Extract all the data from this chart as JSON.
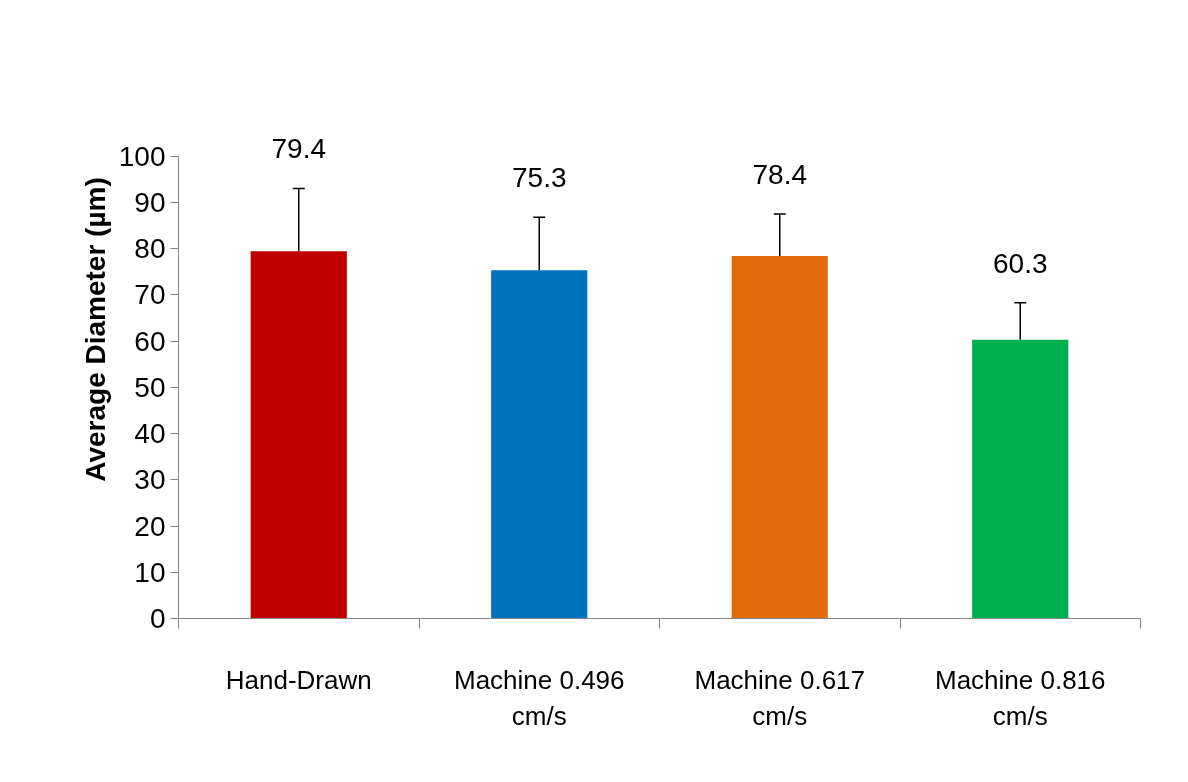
{
  "chart_data": {
    "type": "bar",
    "ylabel": "Average Diameter (µm)",
    "categories": [
      "Hand-Drawn",
      "Machine 0.496 cm/s",
      "Machine 0.617 cm/s",
      "Machine 0.816 cm/s"
    ],
    "values": [
      79.4,
      75.3,
      78.4,
      60.3
    ],
    "colors": [
      "#c00000",
      "#0070c0",
      "#e36c0a",
      "#00b050"
    ],
    "errors": [
      [
        79.4,
        93.0
      ],
      [
        75.3,
        86.8
      ],
      [
        78.4,
        87.5
      ],
      [
        60.3,
        68.3
      ]
    ],
    "ylim": [
      0,
      100
    ],
    "yticks": [
      0,
      10,
      20,
      30,
      40,
      50,
      60,
      70,
      80,
      90,
      100
    ],
    "data_labels": true,
    "grid": false
  }
}
